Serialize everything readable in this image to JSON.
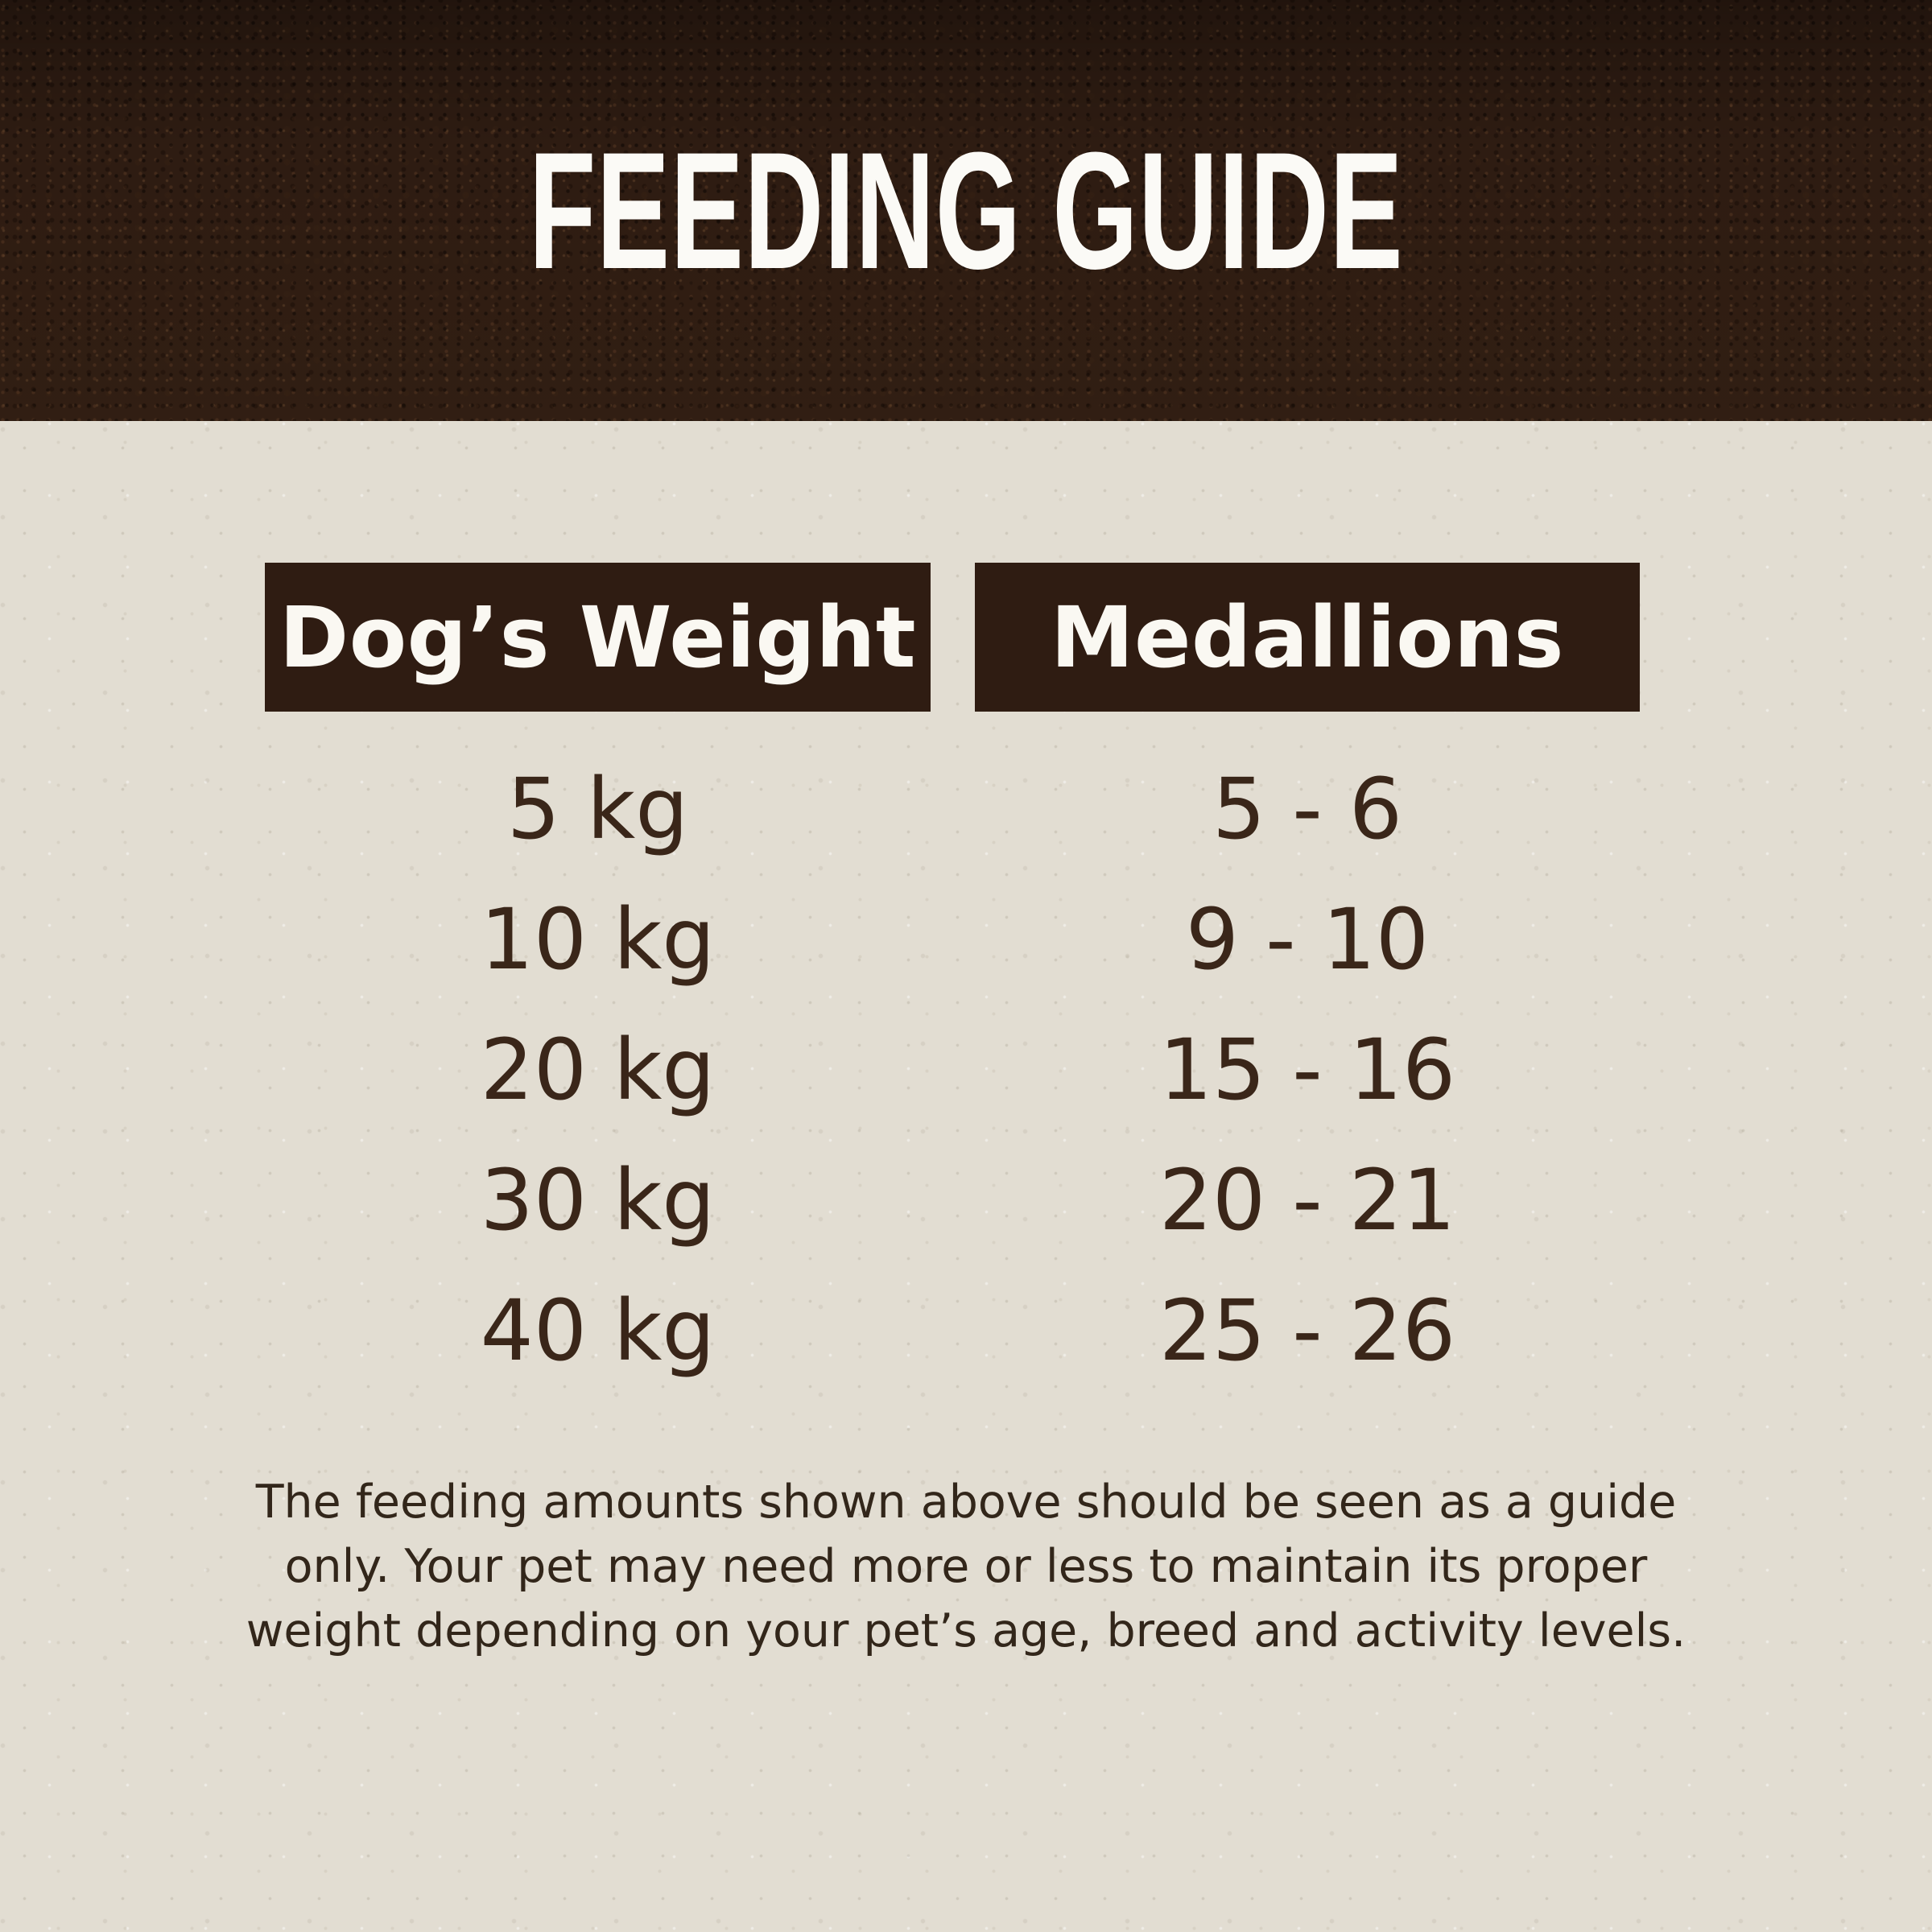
{
  "header": {
    "title": "FEEDING GUIDE"
  },
  "table": {
    "columns": [
      {
        "label": "Dog’s Weight"
      },
      {
        "label": "Medallions"
      }
    ],
    "rows": [
      {
        "weight": "5 kg",
        "medallions": "5 - 6"
      },
      {
        "weight": "10 kg",
        "medallions": "9 - 10"
      },
      {
        "weight": "20 kg",
        "medallions": "15 - 16"
      },
      {
        "weight": "30 kg",
        "medallions": "20 - 21"
      },
      {
        "weight": "40 kg",
        "medallions": "25 - 26"
      }
    ]
  },
  "footer": {
    "lines": [
      "The feeding amounts shown above should be seen as a guide",
      "only. Your pet may need more or less to maintain its proper",
      "weight depending on your pet’s age, breed and activity levels."
    ]
  },
  "colors": {
    "soil_band": "#2e1c12",
    "paper_background": "#e2ddd2",
    "header_bar": "#2f1c12",
    "table_text": "#3a2619",
    "footer_text": "#32261a",
    "title_text": "#fbfaf6"
  }
}
